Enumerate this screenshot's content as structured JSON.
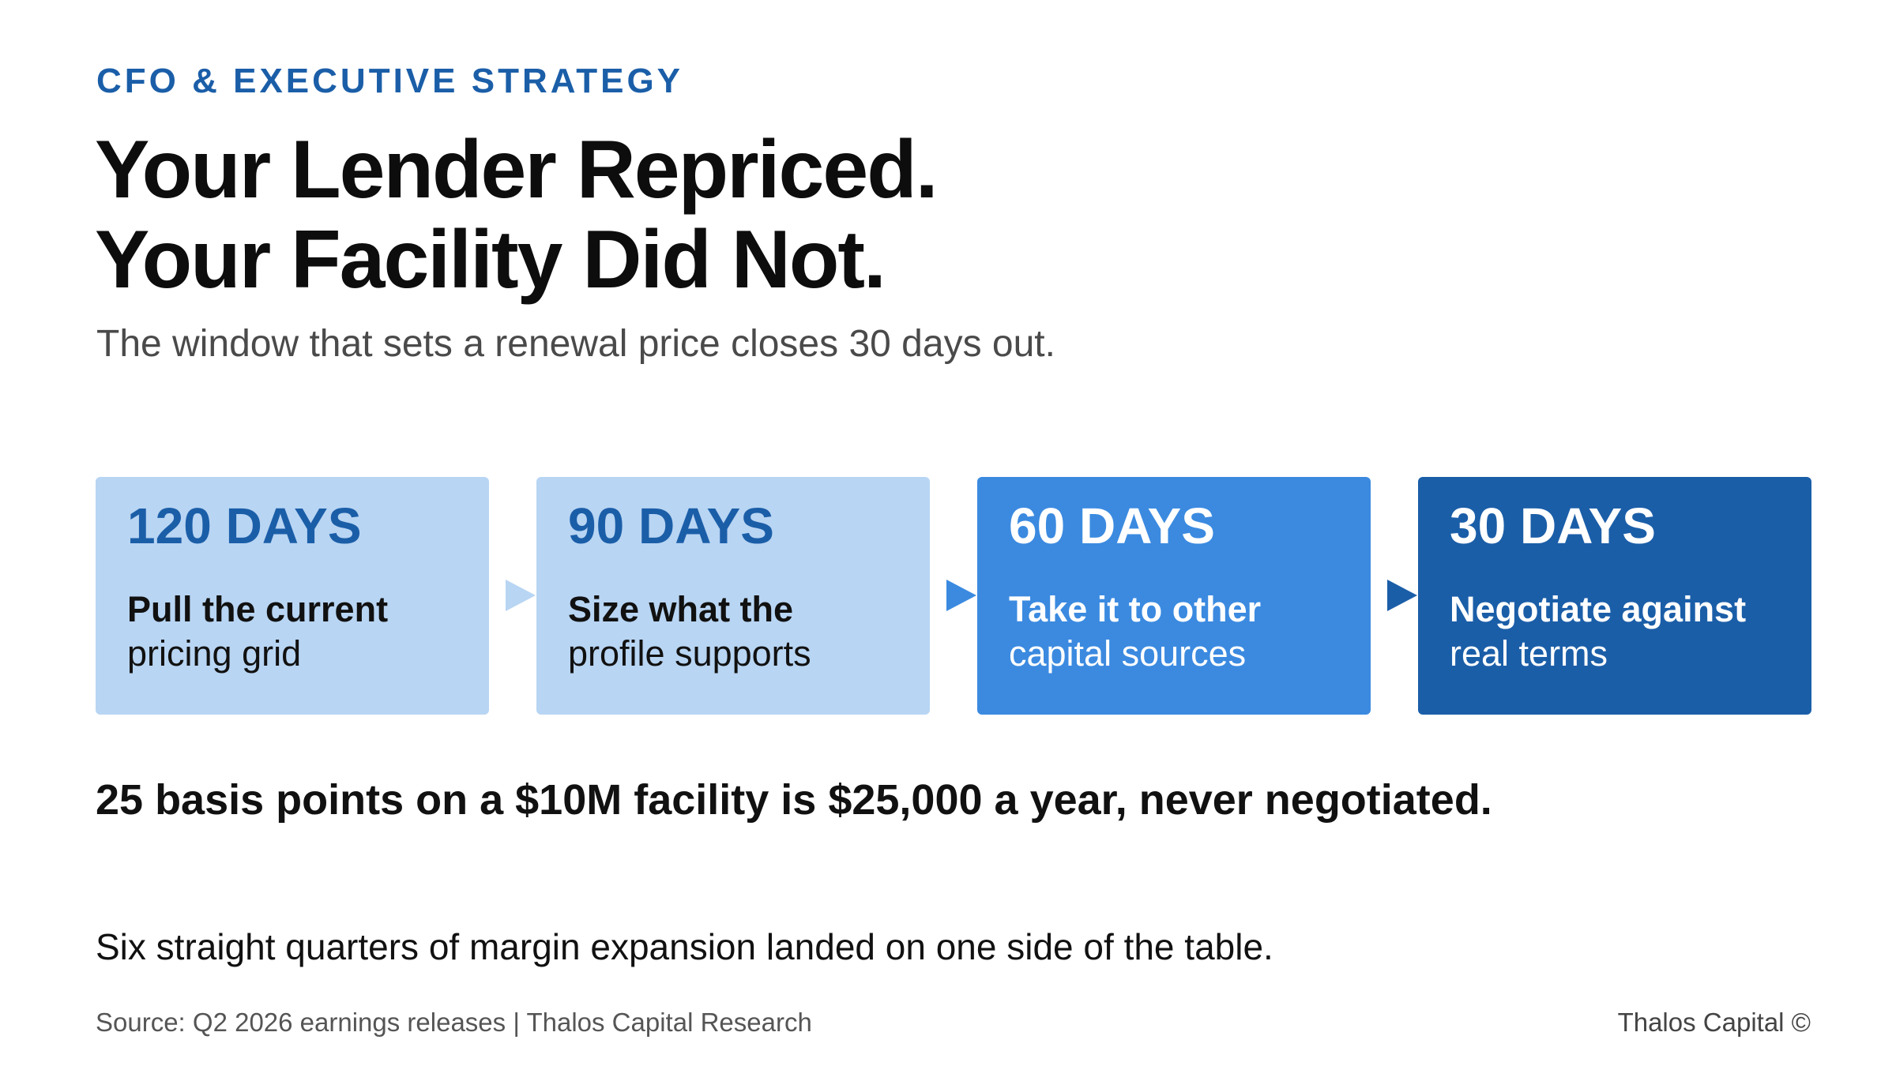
{
  "header": {
    "eyebrow": "CFO & EXECUTIVE STRATEGY",
    "headline_line1": "Your Lender Repriced.",
    "headline_line2": "Your Facility Did Not.",
    "subtitle": "The window that sets a renewal price closes 30 days out."
  },
  "steps": [
    {
      "days": "120 DAYS",
      "line1": "Pull the current",
      "line2": "pricing grid",
      "bg": "#b8d5f3",
      "fg": "#1b5ea8",
      "text": "#111111"
    },
    {
      "days": "90 DAYS",
      "line1": "Size what the",
      "line2": "profile supports",
      "bg": "#b8d5f3",
      "fg": "#1b5ea8",
      "text": "#111111"
    },
    {
      "days": "60 DAYS",
      "line1": "Take it to other",
      "line2": "capital sources",
      "bg": "#3b8ae0",
      "fg": "#ffffff",
      "text": "#ffffff"
    },
    {
      "days": "30 DAYS",
      "line1": "Negotiate against",
      "line2": "real terms",
      "bg": "#1b5ea8",
      "fg": "#ffffff",
      "text": "#ffffff"
    }
  ],
  "arrows": [
    "#b8d5f3",
    "#3b8ae0",
    "#1b5ea8"
  ],
  "callout": "25 basis points on a $10M facility is $25,000 a year, never negotiated.",
  "note": "Six straight quarters of margin expansion landed on one side of the table.",
  "footer": {
    "source": "Source: Q2 2026 earnings releases | Thalos Capital Research",
    "brand": "Thalos Capital ©"
  }
}
